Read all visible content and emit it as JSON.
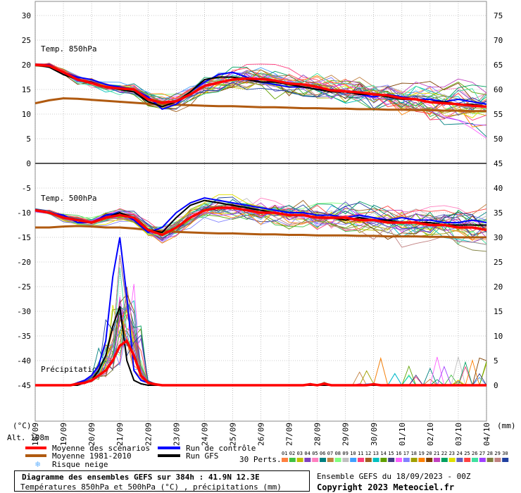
{
  "chart_data": {
    "type": "line",
    "title": "Diagramme des ensembles GEFS sur 384h : 41.9N 12.3E",
    "subtitle": "Températures 850hPa et 500hPa (°C) , précipitations (mm)",
    "left_axis_unit": "(°C)",
    "right_axis_unit": "(mm)",
    "altitude_label": "Alt. 108m",
    "ylim_left": [
      -45,
      30
    ],
    "ylim_right": [
      0,
      75
    ],
    "left_ticks": [
      30,
      25,
      20,
      15,
      10,
      5,
      0,
      -5,
      -10,
      -15,
      -20,
      -25,
      -30,
      -35,
      -40,
      -45
    ],
    "right_ticks": [
      75,
      70,
      65,
      60,
      55,
      50,
      45,
      40,
      35,
      30,
      25,
      20,
      15,
      10,
      5,
      0
    ],
    "x_labels": [
      "18/09",
      "19/09",
      "20/09",
      "21/09",
      "22/09",
      "23/09",
      "24/09",
      "25/09",
      "26/09",
      "27/09",
      "28/09",
      "29/09",
      "30/09",
      "01/10",
      "02/10",
      "03/10",
      "04/10"
    ],
    "panel_labels": {
      "t850": "Temp. 850hPa",
      "t500": "Temp. 500hPa",
      "precip": "Précipitations"
    },
    "t850": {
      "mean_scenarios": [
        20,
        19.8,
        18.5,
        17,
        16.3,
        15.5,
        15.2,
        15,
        13,
        12.3,
        12.6,
        14,
        15.7,
        16.4,
        17,
        17.2,
        17.1,
        16.8,
        16.2,
        16,
        15.5,
        14.8,
        14.6,
        14.4,
        14,
        13.8,
        13.2,
        13,
        12.4,
        12.2,
        12,
        11.7,
        11.5
      ],
      "climatology": [
        12.2,
        12.8,
        13.2,
        13.1,
        12.9,
        12.7,
        12.5,
        12.3,
        12.1,
        12,
        11.9,
        11.8,
        11.7,
        11.6,
        11.6,
        11.5,
        11.4,
        11.4,
        11.3,
        11.2,
        11.2,
        11.1,
        11.1,
        11,
        11,
        10.9,
        10.9,
        10.8,
        10.8,
        10.7,
        10.7,
        10.6,
        10.6
      ],
      "control": [
        20,
        20,
        18.5,
        17.5,
        17,
        16,
        15.5,
        15,
        13.5,
        11,
        12,
        14.5,
        16.5,
        18,
        18.5,
        17.5,
        16.5,
        16,
        15.5,
        15.5,
        15,
        15,
        14.5,
        14,
        13.5,
        14,
        13.5,
        13,
        13,
        12.5,
        13,
        12.5,
        12
      ],
      "gfs": [
        20,
        19.5,
        18,
        17,
        16.5,
        15.5,
        15,
        14.5,
        12.5,
        11.5,
        12.5,
        14.5,
        17,
        17.5,
        17.5,
        17,
        16.5,
        16.5,
        16,
        15.5,
        15,
        14.5,
        14.5,
        14,
        14,
        13.5,
        13,
        13,
        12.5,
        12.5,
        12,
        12,
        11.5
      ]
    },
    "t500": {
      "mean_scenarios": [
        -9.5,
        -10,
        -11,
        -11.5,
        -12,
        -11,
        -10.5,
        -11,
        -13.5,
        -14.5,
        -13,
        -11,
        -9.5,
        -9,
        -9,
        -9.5,
        -10,
        -10,
        -10.5,
        -10.5,
        -11,
        -11,
        -11,
        -11.5,
        -11.5,
        -12,
        -12,
        -12,
        -12.5,
        -12.5,
        -13,
        -13,
        -13.5
      ],
      "climatology": [
        -13,
        -13,
        -12.8,
        -12.7,
        -12.8,
        -13,
        -13,
        -13.2,
        -13.5,
        -13.7,
        -13.9,
        -14,
        -14.1,
        -14.2,
        -14.2,
        -14.3,
        -14.4,
        -14.4,
        -14.5,
        -14.5,
        -14.6,
        -14.6,
        -14.6,
        -14.7,
        -14.7,
        -14.8,
        -14.8,
        -14.8,
        -14.9,
        -14.9,
        -15,
        -15,
        -15
      ],
      "control": [
        -9.5,
        -10,
        -10.5,
        -12,
        -12,
        -10.5,
        -10,
        -11.5,
        -14,
        -13,
        -10,
        -8,
        -7,
        -7.5,
        -8,
        -8.5,
        -9,
        -9.5,
        -10,
        -10,
        -10.5,
        -10.5,
        -11,
        -10.5,
        -11,
        -11.5,
        -11,
        -11.5,
        -11.5,
        -12,
        -12,
        -11.5,
        -12
      ],
      "gfs": [
        -9.5,
        -10,
        -11,
        -11.5,
        -12,
        -11,
        -10,
        -11,
        -13.5,
        -14,
        -11,
        -8.5,
        -7.5,
        -8,
        -8.5,
        -9,
        -9.5,
        -10,
        -10.5,
        -10.5,
        -11,
        -11,
        -11.5,
        -11,
        -11.5,
        -11.5,
        -12,
        -12,
        -12,
        -12.5,
        -12.5,
        -12.5,
        -12.5
      ]
    },
    "precip": {
      "mean_scenarios": [
        0,
        0,
        0,
        0,
        0,
        0,
        0.3,
        0.5,
        1,
        2,
        3,
        5,
        8,
        9,
        6,
        2,
        0.5,
        0.2,
        0,
        0,
        0,
        0,
        0,
        0,
        0,
        0,
        0,
        0,
        0,
        0,
        0,
        0,
        0,
        0,
        0,
        0,
        0,
        0,
        0,
        0.2,
        0,
        0.3,
        0,
        0,
        0,
        0,
        0,
        0,
        0.2,
        0,
        0,
        0,
        0,
        0,
        0,
        0,
        0,
        0,
        0,
        0,
        0,
        0,
        0,
        0,
        0
      ],
      "control": [
        0,
        0,
        0,
        0,
        0,
        0,
        0.5,
        1,
        2,
        4,
        9,
        22,
        30,
        18,
        3,
        1,
        0.5,
        0,
        0,
        0,
        0,
        0,
        0,
        0,
        0,
        0,
        0,
        0,
        0,
        0,
        0,
        0,
        0,
        0,
        0,
        0,
        0,
        0,
        0,
        0,
        0,
        0,
        0,
        0,
        0,
        0,
        0,
        0,
        0,
        0,
        0,
        0,
        0,
        0,
        0,
        0,
        0,
        0,
        0,
        0,
        0,
        0,
        0,
        0,
        0
      ],
      "gfs": [
        0,
        0,
        0,
        0,
        0,
        0,
        0,
        0.5,
        1,
        3,
        6,
        12,
        16,
        5,
        1,
        0.3,
        0,
        0,
        0,
        0,
        0,
        0,
        0,
        0,
        0,
        0,
        0,
        0,
        0,
        0,
        0,
        0,
        0,
        0,
        0,
        0,
        0,
        0,
        0,
        0,
        0,
        0,
        0,
        0,
        0,
        0,
        0,
        0,
        0,
        0,
        0,
        0,
        0,
        0,
        0,
        0,
        0,
        0,
        0,
        0,
        0,
        0,
        0,
        0,
        0
      ]
    },
    "legend": {
      "mean": "Moyenne des scénarios",
      "clim": "Moyenne 1981-2010",
      "snow": "Risque neige",
      "control": "Run de contrôle",
      "gfs": "Run GFS",
      "perts": "30 Perts."
    },
    "member_numbers": [
      "01",
      "02",
      "03",
      "04",
      "05",
      "06",
      "07",
      "08",
      "09",
      "10",
      "11",
      "12",
      "13",
      "14",
      "15",
      "16",
      "17",
      "18",
      "19",
      "20",
      "21",
      "22",
      "23",
      "24",
      "25",
      "26",
      "27",
      "28",
      "29",
      "30"
    ],
    "colors": {
      "mean": "#ff0000",
      "clim": "#b05a10",
      "control": "#0000ff",
      "gfs": "#000000",
      "snow": "#66b3ff",
      "grid": "#888888",
      "members": [
        "#ff8040",
        "#40c040",
        "#c0c000",
        "#8040c0",
        "#ff80c0",
        "#008080",
        "#c08040",
        "#80ff80",
        "#c0c0c0",
        "#40a0ff",
        "#ff4080",
        "#a06020",
        "#00c0c0",
        "#60a000",
        "#404080",
        "#ff60ff",
        "#8080ff",
        "#a0a000",
        "#ff8000",
        "#804000",
        "#c040c0",
        "#00a060",
        "#e0e000",
        "#6060c0",
        "#ff4040",
        "#40e0a0",
        "#a040ff",
        "#808040",
        "#c08080",
        "#2040a0"
      ]
    }
  },
  "footer": {
    "title": "Diagramme des ensembles GEFS sur 384h : 41.9N 12.3E",
    "subtitle": "Températures 850hPa et 500hPa (°C) , précipitations (mm)",
    "run_info": "Ensemble GEFS du 18/09/2023 - 00Z",
    "copyright": "Copyright 2023 Meteociel.fr"
  }
}
